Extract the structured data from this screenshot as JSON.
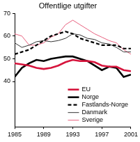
{
  "chart_data": {
    "type": "line",
    "title": "Offentlige utgifter",
    "x": [
      1985,
      1986,
      1987,
      1988,
      1989,
      1990,
      1991,
      1992,
      1993,
      1994,
      1995,
      1996,
      1997,
      1998,
      1999,
      2000,
      2001
    ],
    "xlim": [
      1985,
      2001
    ],
    "xticks": [
      1985,
      1989,
      1993,
      1997,
      2001
    ],
    "ylim": [
      20,
      70
    ],
    "yticks": [
      40,
      50,
      60,
      70
    ],
    "grid": false,
    "legend": "lower right",
    "series": [
      {
        "name": "EU",
        "color": "#d6143c",
        "line_style": "thick",
        "values": [
          48,
          47.5,
          47,
          46,
          45.5,
          46,
          47,
          48.5,
          49.5,
          49,
          49,
          48.5,
          47,
          46.5,
          46.5,
          45,
          44.5
        ]
      },
      {
        "name": "Norge",
        "color": "#000000",
        "line_style": "thick",
        "values": [
          42,
          46,
          48,
          49.5,
          49,
          50,
          50.5,
          51,
          51,
          50,
          49,
          47,
          45,
          46.5,
          46,
          42,
          43
        ]
      },
      {
        "name": "Fastlands-Norge",
        "color": "#000000",
        "line_style": "dashed",
        "values": [
          52,
          53,
          54,
          56,
          58,
          60,
          61,
          62,
          61,
          59,
          58,
          57,
          56,
          56,
          56,
          54.5,
          54.5
        ]
      },
      {
        "name": "Danmark",
        "color": "#333333",
        "line_style": "thin",
        "values": [
          57,
          55,
          56,
          57.5,
          58,
          57.5,
          58,
          59,
          61,
          60.5,
          59,
          58.5,
          57,
          56.5,
          55,
          53,
          53
        ]
      },
      {
        "name": "Sverige",
        "color": "#e8607e",
        "line_style": "thin",
        "values": [
          61,
          60,
          56,
          56,
          57,
          59.5,
          61,
          65,
          67,
          65,
          63,
          61,
          59.5,
          58,
          57,
          54,
          52
        ]
      }
    ]
  }
}
